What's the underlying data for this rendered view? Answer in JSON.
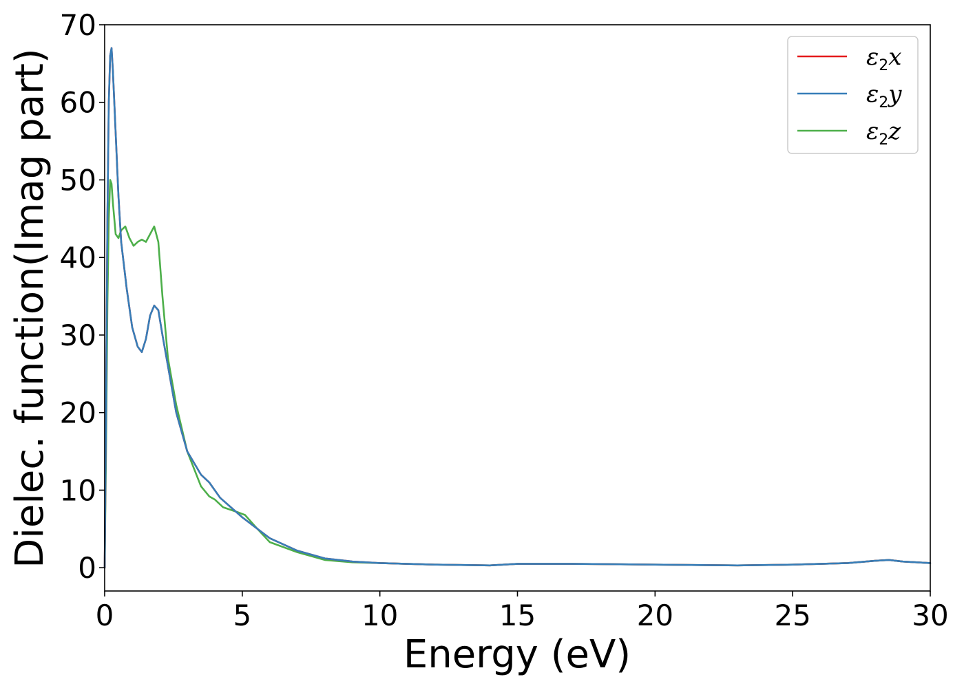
{
  "chart_data": {
    "type": "line",
    "title": "",
    "xlabel": "Energy (eV)",
    "ylabel": "Dielec. function(Imag part)",
    "xlim": [
      0,
      30
    ],
    "ylim": [
      -3,
      70
    ],
    "xticks": [
      0,
      5,
      10,
      15,
      20,
      25,
      30
    ],
    "yticks": [
      0,
      10,
      20,
      30,
      40,
      50,
      60,
      70
    ],
    "grid": false,
    "legend_position": "top-right",
    "series": [
      {
        "name": "ε2x",
        "legend_symbol": "ε",
        "legend_subscript": "2",
        "legend_var": "x",
        "color": "#e41a1c",
        "x": [
          0,
          0.05,
          0.1,
          0.15,
          0.2,
          0.25,
          0.3,
          0.4,
          0.5,
          0.6,
          0.8,
          1.0,
          1.2,
          1.35,
          1.5,
          1.65,
          1.8,
          1.95,
          2.1,
          2.3,
          2.6,
          3.0,
          3.5,
          3.8,
          4.2,
          5.0,
          6.0,
          7.0,
          8.0,
          9.0,
          10,
          12,
          14,
          15,
          17,
          20,
          23,
          25,
          27,
          28,
          28.5,
          29,
          30
        ],
        "y": [
          0,
          20,
          45,
          60,
          66,
          67,
          64,
          56,
          48,
          42,
          36,
          31,
          28.5,
          27.8,
          29.5,
          32.5,
          33.8,
          33.2,
          30,
          26,
          20,
          15,
          12,
          11,
          9,
          6.5,
          3.8,
          2.2,
          1.2,
          0.8,
          0.6,
          0.4,
          0.3,
          0.5,
          0.5,
          0.4,
          0.3,
          0.4,
          0.6,
          0.9,
          1.0,
          0.8,
          0.6
        ]
      },
      {
        "name": "ε2y",
        "legend_symbol": "ε",
        "legend_subscript": "2",
        "legend_var": "y",
        "color": "#377eb8",
        "x": [
          0,
          0.05,
          0.1,
          0.15,
          0.2,
          0.25,
          0.3,
          0.4,
          0.5,
          0.6,
          0.8,
          1.0,
          1.2,
          1.35,
          1.5,
          1.65,
          1.8,
          1.95,
          2.1,
          2.3,
          2.6,
          3.0,
          3.5,
          3.8,
          4.2,
          5.0,
          6.0,
          7.0,
          8.0,
          9.0,
          10,
          12,
          14,
          15,
          17,
          20,
          23,
          25,
          27,
          28,
          28.5,
          29,
          30
        ],
        "y": [
          0,
          20,
          45,
          60,
          66,
          67,
          64,
          56,
          48,
          42,
          36,
          31,
          28.5,
          27.8,
          29.5,
          32.5,
          33.8,
          33.2,
          30,
          26,
          20,
          15,
          12,
          11,
          9,
          6.5,
          3.8,
          2.2,
          1.2,
          0.8,
          0.6,
          0.4,
          0.3,
          0.5,
          0.5,
          0.4,
          0.3,
          0.4,
          0.6,
          0.9,
          1.0,
          0.8,
          0.6
        ]
      },
      {
        "name": "ε2z",
        "legend_symbol": "ε",
        "legend_subscript": "2",
        "legend_var": "z",
        "color": "#4daf4a",
        "x": [
          0,
          0.05,
          0.1,
          0.15,
          0.2,
          0.25,
          0.3,
          0.4,
          0.5,
          0.6,
          0.75,
          0.9,
          1.05,
          1.2,
          1.35,
          1.5,
          1.65,
          1.8,
          1.95,
          2.1,
          2.3,
          2.6,
          3.0,
          3.5,
          3.8,
          4.0,
          4.3,
          4.8,
          5.1,
          5.5,
          6.0,
          7.0,
          8.0,
          9.0,
          10,
          12,
          14,
          15,
          17,
          20,
          23,
          25,
          27,
          28,
          28.5,
          29,
          30
        ],
        "y": [
          0,
          15,
          34,
          45,
          50,
          49.5,
          47,
          43,
          42.5,
          43.5,
          44,
          42.5,
          41.5,
          42,
          42.3,
          42,
          43,
          44,
          42,
          35,
          27,
          21,
          15,
          10.5,
          9.2,
          8.8,
          7.8,
          7.2,
          6.8,
          5.2,
          3.3,
          2.0,
          1.0,
          0.7,
          0.6,
          0.4,
          0.3,
          0.5,
          0.5,
          0.4,
          0.3,
          0.4,
          0.6,
          0.9,
          1.0,
          0.8,
          0.6
        ]
      }
    ]
  }
}
